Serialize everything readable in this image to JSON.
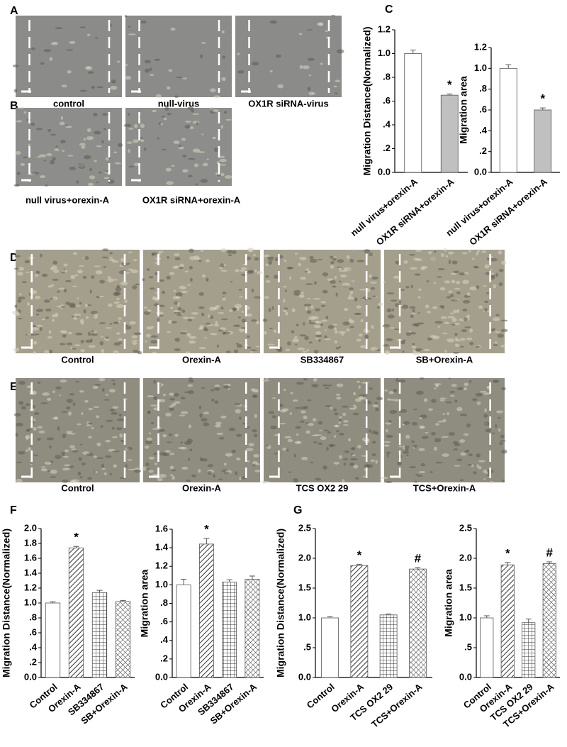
{
  "panel_labels": [
    "A",
    "B",
    "C",
    "D",
    "E",
    "F",
    "G"
  ],
  "micrographs": {
    "A": [
      "control",
      "null-virus",
      "OX1R siRNA-virus"
    ],
    "B": [
      "null virus+orexin-A",
      "OX1R siRNA+orexin-A"
    ],
    "D": [
      "Control",
      "Orexin-A",
      "SB334867",
      "SB+Orexin-A"
    ],
    "E": [
      "Control",
      "Orexin-A",
      "TCS OX2 29",
      "TCS+Orexin-A"
    ]
  },
  "chart_data": [
    {
      "type": "bar",
      "y_label": "Migration Distance(Normalized)",
      "categories": [
        "null virus+orexin-A",
        "OX1R siRNA+orexin-A"
      ],
      "values": [
        1.0,
        0.65
      ],
      "errors": [
        0.03,
        0.01
      ],
      "annotations": [
        null,
        "*"
      ],
      "fills": [
        "#ffffff",
        "#c0c0c0"
      ],
      "ylim": [
        0,
        1.2
      ],
      "yticks": [
        {
          "value": 0,
          "label": "0.0"
        },
        {
          "value": 0.2,
          "label": ".2"
        },
        {
          "value": 0.4,
          "label": ".4"
        },
        {
          "value": 0.6,
          "label": ".6"
        },
        {
          "value": 0.8,
          "label": ".8"
        },
        {
          "value": 1,
          "label": "1.0"
        },
        1.2
      ]
    },
    {
      "type": "bar",
      "y_label": "Migration area",
      "categories": [
        "null virus+orexin-A",
        "OX1R siRNA+orexin-A"
      ],
      "values": [
        1.0,
        0.6
      ],
      "errors": [
        0.035,
        0.02
      ],
      "annotations": [
        null,
        "*"
      ],
      "fills": [
        "#ffffff",
        "#c0c0c0"
      ],
      "ylim": [
        0,
        1.2
      ],
      "yticks": [
        {
          "value": 0,
          "label": "0.0"
        },
        {
          "value": 0.2,
          "label": ".2"
        },
        {
          "value": 0.4,
          "label": ".4"
        },
        {
          "value": 0.6,
          "label": ".6"
        },
        {
          "value": 0.8,
          "label": ".8"
        },
        {
          "value": 1,
          "label": "1.0"
        },
        1.2
      ]
    },
    {
      "type": "bar",
      "y_label": "Migration Distance(Normalized)",
      "categories": [
        "Control",
        "Orexin-A",
        "SB334867",
        "SB+Orexin-A"
      ],
      "values": [
        1.0,
        1.74,
        1.14,
        1.02
      ],
      "errors": [
        0.015,
        0.02,
        0.03,
        0.015
      ],
      "annotations": [
        null,
        "*",
        null,
        null
      ],
      "fills": [
        "white",
        "diagonal",
        "grid",
        "crosshatch"
      ],
      "ylim": [
        0,
        2
      ],
      "yticks": [
        {
          "value": 0,
          "label": "0.0"
        },
        {
          "value": 0.2,
          "label": ".2"
        },
        {
          "value": 0.4,
          "label": ".4"
        },
        {
          "value": 0.6,
          "label": ".6"
        },
        {
          "value": 0.8,
          "label": ".8"
        },
        {
          "value": 1,
          "label": "1.0"
        },
        1.2,
        1.4,
        1.6,
        1.8,
        {
          "value": 2,
          "label": "2.0"
        }
      ]
    },
    {
      "type": "bar",
      "y_label": "Migration area",
      "categories": [
        "Control",
        "Orexin-A",
        "SB334867",
        "SB+Orexin-A"
      ],
      "values": [
        1.0,
        1.44,
        1.03,
        1.06
      ],
      "errors": [
        0.06,
        0.06,
        0.025,
        0.035
      ],
      "annotations": [
        null,
        "*",
        null,
        null
      ],
      "fills": [
        "white",
        "diagonal",
        "grid",
        "crosshatch"
      ],
      "ylim": [
        0,
        1.6
      ],
      "yticks": [
        {
          "value": 0,
          "label": "0.0"
        },
        {
          "value": 0.2,
          "label": ".2"
        },
        {
          "value": 0.4,
          "label": ".4"
        },
        {
          "value": 0.6,
          "label": ".6"
        },
        {
          "value": 0.8,
          "label": ".8"
        },
        {
          "value": 1,
          "label": "1.0"
        },
        1.2,
        1.4,
        1.6
      ]
    },
    {
      "type": "bar",
      "y_label": "Migration Distance(Normalized)",
      "categories": [
        "Control",
        "Orexin-A",
        "TCS OX2 29",
        "TCS+Orexin-A"
      ],
      "values": [
        1.0,
        1.88,
        1.05,
        1.82
      ],
      "errors": [
        0.02,
        0.02,
        0.015,
        0.025
      ],
      "annotations": [
        null,
        "*",
        null,
        "#"
      ],
      "fills": [
        "white",
        "diagonal",
        "grid",
        "crosshatch"
      ],
      "ylim": [
        0,
        2.5
      ],
      "yticks": [
        {
          "value": 0,
          "label": "0.0"
        },
        {
          "value": 0.5,
          "label": ".5"
        },
        {
          "value": 1,
          "label": "1.0"
        },
        1.5,
        {
          "value": 2,
          "label": "2.0"
        },
        2.5
      ]
    },
    {
      "type": "bar",
      "y_label": "Migration area",
      "categories": [
        "Control",
        "Orexin-A",
        "TCS OX2 29",
        "TCS+Orexin-A"
      ],
      "values": [
        1.0,
        1.89,
        0.92,
        1.91
      ],
      "errors": [
        0.035,
        0.04,
        0.06,
        0.03
      ],
      "annotations": [
        null,
        "*",
        null,
        "#"
      ],
      "fills": [
        "white",
        "diagonal",
        "grid",
        "crosshatch"
      ],
      "ylim": [
        0,
        2.5
      ],
      "yticks": [
        {
          "value": 0,
          "label": "0.0"
        },
        {
          "value": 0.5,
          "label": ".5"
        },
        {
          "value": 1,
          "label": "1.0"
        },
        1.5,
        {
          "value": 2,
          "label": "2.0"
        },
        2.5
      ]
    }
  ]
}
